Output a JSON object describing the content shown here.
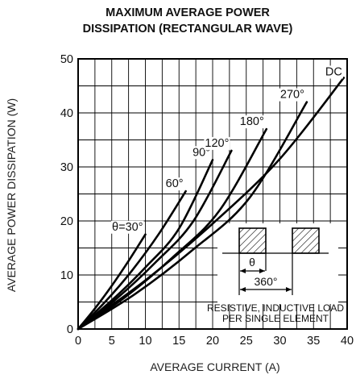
{
  "chart_data": {
    "type": "line",
    "title_line1": "MAXIMUM AVERAGE POWER",
    "title_line2": "DISSIPATION (RECTANGULAR WAVE)",
    "xlabel": "AVERAGE CURRENT (A)",
    "ylabel": "AVERAGE POWER DISSIPATION (W)",
    "xlim": [
      0,
      40
    ],
    "ylim": [
      0,
      50
    ],
    "x_ticks": [
      "0",
      "5",
      "10",
      "15",
      "20",
      "25",
      "30",
      "35",
      "40"
    ],
    "y_ticks": [
      "0",
      "10",
      "20",
      "30",
      "40",
      "50"
    ],
    "grid": true,
    "series": [
      {
        "name": "θ=30°",
        "x": [
          0,
          2.5,
          5,
          7.5,
          10
        ],
        "y": [
          0,
          3.8,
          8.0,
          12.6,
          17.5
        ]
      },
      {
        "name": "60°",
        "x": [
          0,
          4,
          8,
          12,
          16
        ],
        "y": [
          0,
          5.0,
          10.8,
          17.6,
          25.5
        ]
      },
      {
        "name": "90°",
        "x": [
          0,
          5,
          10,
          15,
          20
        ],
        "y": [
          0,
          5.3,
          11.4,
          18.6,
          31.3
        ]
      },
      {
        "name": "120°",
        "x": [
          0,
          5.7,
          11.4,
          17.1,
          22.8
        ],
        "y": [
          0,
          5.6,
          12.2,
          19.9,
          33.0
        ]
      },
      {
        "name": "180°",
        "x": [
          0,
          7,
          14,
          21,
          28
        ],
        "y": [
          0,
          5.9,
          13.2,
          21.9,
          37.0
        ]
      },
      {
        "name": "270°",
        "x": [
          0,
          8.5,
          17,
          25.5,
          34
        ],
        "y": [
          0,
          6.5,
          14.6,
          24.3,
          42.0
        ]
      },
      {
        "name": "DC",
        "x": [
          0,
          10,
          20,
          30,
          39.5
        ],
        "y": [
          0,
          9.0,
          19.5,
          31.5,
          46.5
        ]
      }
    ],
    "inset": {
      "theta_label": "θ",
      "period_label": "360°",
      "note_line1": "RESISTIVE, INDUCTIVE LOAD",
      "note_line2": "PER SINGLE ELEMENT"
    }
  }
}
